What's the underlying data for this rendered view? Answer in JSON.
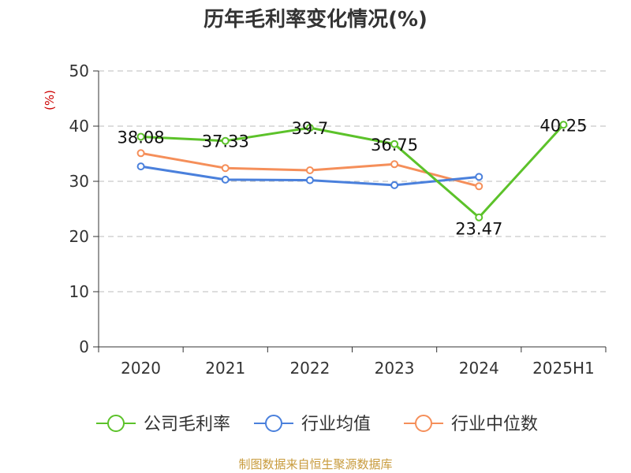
{
  "chart_data": {
    "type": "line",
    "title": "历年毛利率变化情况(%)",
    "ylabel": "(%)",
    "ylabel_color": "#cc0000",
    "categories": [
      "2020",
      "2021",
      "2022",
      "2023",
      "2024",
      "2025H1"
    ],
    "ylim": [
      0,
      50
    ],
    "yticks": [
      "0",
      "10",
      "20",
      "30",
      "40",
      "50"
    ],
    "grid": "horizontal-dashed",
    "legend_position": "bottom",
    "series": [
      {
        "name": "公司毛利率",
        "color": "#5cc22a",
        "values": [
          38.08,
          37.33,
          39.7,
          36.75,
          23.47,
          40.25
        ],
        "labels": [
          "38.08",
          "37.33",
          "39.7",
          "36.75",
          "23.47",
          "40.25"
        ]
      },
      {
        "name": "行业均值",
        "color": "#4a80dc",
        "values": [
          32.7,
          30.3,
          30.2,
          29.3,
          30.8,
          null
        ],
        "labels": []
      },
      {
        "name": "行业中位数",
        "color": "#f58f5a",
        "values": [
          35.1,
          32.4,
          32.0,
          33.1,
          29.1,
          null
        ],
        "labels": []
      }
    ]
  },
  "source_text": "制图数据来自恒生聚源数据库",
  "source_color": "#c89b3c"
}
